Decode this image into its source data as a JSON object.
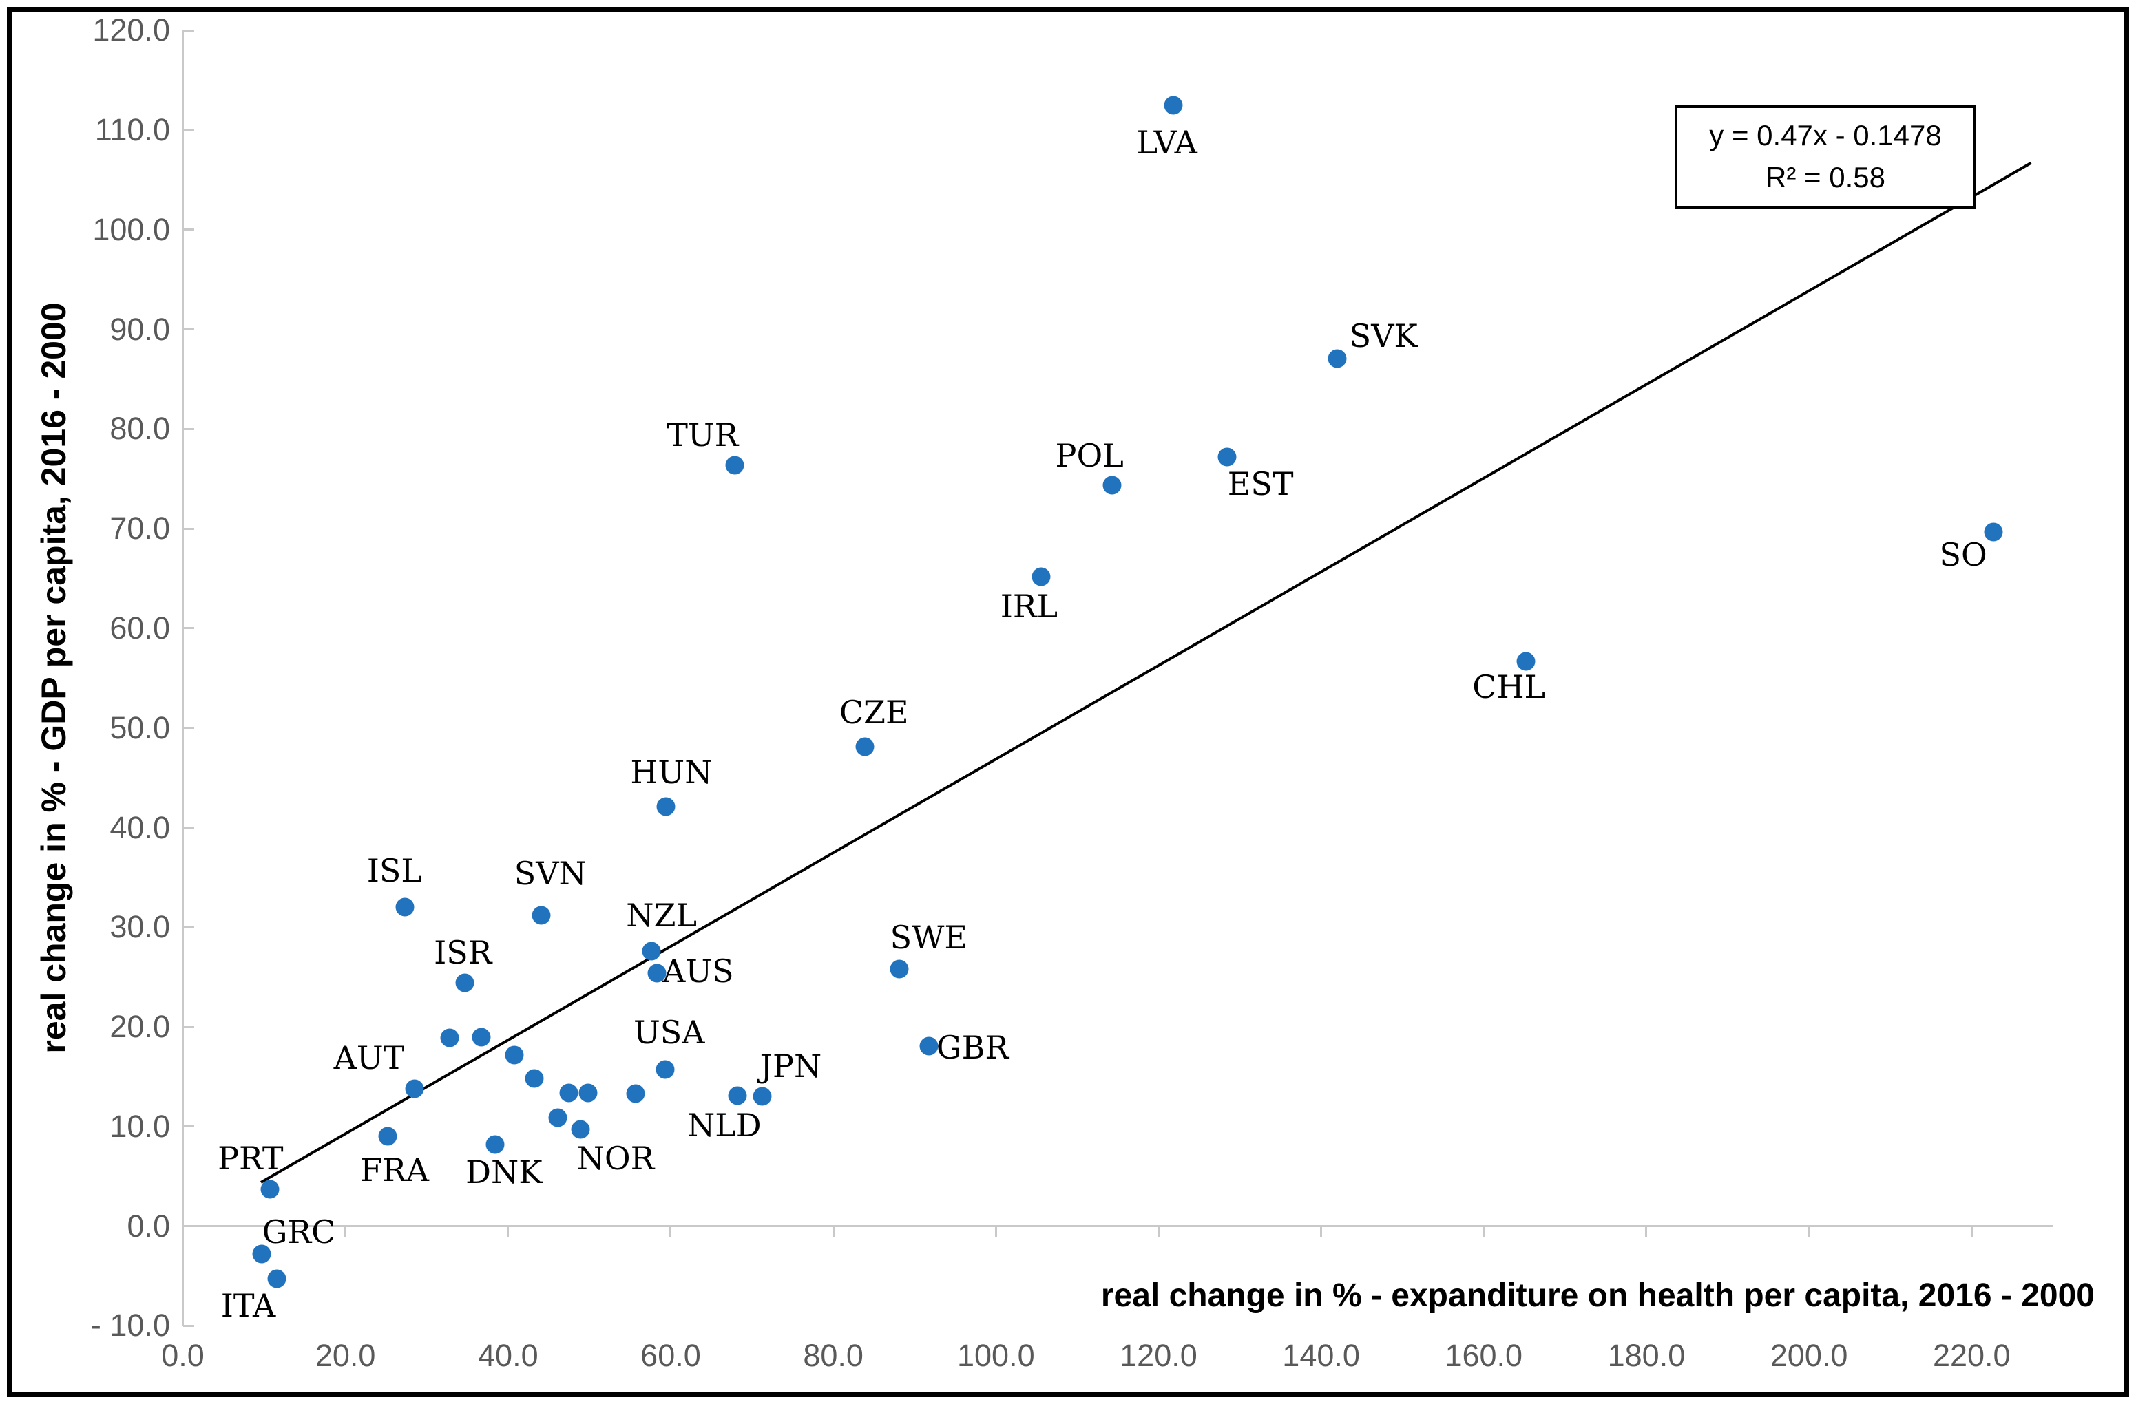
{
  "chart_data": {
    "type": "scatter",
    "title": "",
    "xlabel": "real change in %  - expanditure on health per capita, 2016 - 2000",
    "ylabel": "real change in % - GDP per capita, 2016 - 2000",
    "xlim": [
      0,
      230
    ],
    "ylim": [
      -10,
      120
    ],
    "grid": false,
    "legend_position": "none",
    "point_color": "#2173be",
    "axis_line_color": "#c9c9c9",
    "tick_label_color": "#595959",
    "x_ticks": [
      {
        "value": 0,
        "label": "0.0"
      },
      {
        "value": 20,
        "label": "20.0"
      },
      {
        "value": 40,
        "label": "40.0"
      },
      {
        "value": 60,
        "label": "60.0"
      },
      {
        "value": 80,
        "label": "80.0"
      },
      {
        "value": 100,
        "label": "100.0"
      },
      {
        "value": 120,
        "label": "120.0"
      },
      {
        "value": 140,
        "label": "140.0"
      },
      {
        "value": 160,
        "label": "160.0"
      },
      {
        "value": 180,
        "label": "180.0"
      },
      {
        "value": 200,
        "label": "200.0"
      },
      {
        "value": 220,
        "label": "220.0"
      }
    ],
    "y_ticks": [
      {
        "value": 120,
        "label": "120.0"
      },
      {
        "value": 110,
        "label": "110.0"
      },
      {
        "value": 100,
        "label": "100.0"
      },
      {
        "value": 90,
        "label": "90.0"
      },
      {
        "value": 80,
        "label": "80.0"
      },
      {
        "value": 70,
        "label": "70.0"
      },
      {
        "value": 60,
        "label": "60.0"
      },
      {
        "value": 50,
        "label": "50.0"
      },
      {
        "value": 40,
        "label": "40.0"
      },
      {
        "value": 30,
        "label": "30.0"
      },
      {
        "value": 20,
        "label": "20.0"
      },
      {
        "value": 10,
        "label": "10.0"
      },
      {
        "value": 0,
        "label": "0.0"
      },
      {
        "value": -10,
        "label": "- 10.0"
      }
    ],
    "trendline": {
      "equation": "y = 0.47x - 0.1478",
      "r2": "R² = 0.58",
      "slope": 0.47,
      "intercept": -0.1478,
      "x_start": 9.6,
      "x_end": 227.3
    },
    "points": [
      {
        "label": "LVA",
        "x": 121.8,
        "y": 112.5,
        "label_offset": [
          -9,
          54
        ]
      },
      {
        "label": "SVK",
        "x": 142.0,
        "y": 87.1,
        "label_offset": [
          67,
          -33
        ]
      },
      {
        "label": "EST",
        "x": 128.4,
        "y": 77.2,
        "label_offset": [
          49,
          39
        ]
      },
      {
        "label": "POL",
        "x": 114.3,
        "y": 74.4,
        "label_offset": [
          -33,
          -43
        ]
      },
      {
        "label": "TUR",
        "x": 67.9,
        "y": 76.4,
        "label_offset": [
          -47,
          -44
        ]
      },
      {
        "label": "SO",
        "x": 222.7,
        "y": 69.7,
        "label_offset": [
          -44,
          33
        ]
      },
      {
        "label": "IRL",
        "x": 105.6,
        "y": 65.2,
        "label_offset": [
          -18,
          43
        ]
      },
      {
        "label": "CHL",
        "x": 165.2,
        "y": 56.7,
        "label_offset": [
          -25,
          37
        ]
      },
      {
        "label": "CZE",
        "x": 83.9,
        "y": 48.1,
        "label_offset": [
          13,
          -50
        ]
      },
      {
        "label": "HUN",
        "x": 59.4,
        "y": 42.1,
        "label_offset": [
          8,
          -50
        ]
      },
      {
        "label": "ISL",
        "x": 27.3,
        "y": 32.0,
        "label_offset": [
          -15,
          -53
        ]
      },
      {
        "label": "SVN",
        "x": 44.1,
        "y": 31.2,
        "label_offset": [
          13,
          -61
        ]
      },
      {
        "label": "NZL",
        "x": 57.6,
        "y": 27.6,
        "label_offset": [
          15,
          -52
        ]
      },
      {
        "label": "SWE",
        "x": 88.1,
        "y": 25.8,
        "label_offset": [
          43,
          -46
        ]
      },
      {
        "label": "AUS",
        "x": 58.3,
        "y": 25.4,
        "label_offset": [
          60,
          -3
        ]
      },
      {
        "label": "ISR",
        "x": 34.7,
        "y": 24.4,
        "label_offset": [
          -3,
          -44
        ]
      },
      {
        "label": "",
        "x": 32.8,
        "y": 18.9
      },
      {
        "label": "",
        "x": 36.7,
        "y": 19.0
      },
      {
        "label": "GBR",
        "x": 91.8,
        "y": 18.1,
        "label_offset": [
          63,
          2
        ]
      },
      {
        "label": "",
        "x": 40.8,
        "y": 17.2
      },
      {
        "label": "USA",
        "x": 59.3,
        "y": 15.7,
        "label_offset": [
          6,
          -54
        ]
      },
      {
        "label": "",
        "x": 43.2,
        "y": 14.8
      },
      {
        "label": "AUT",
        "x": 28.5,
        "y": 13.8,
        "label_offset": [
          -66,
          -45
        ]
      },
      {
        "label": "",
        "x": 47.5,
        "y": 13.4
      },
      {
        "label": "",
        "x": 49.8,
        "y": 13.4
      },
      {
        "label": "",
        "x": 55.7,
        "y": 13.3
      },
      {
        "label": "NLD",
        "x": 68.2,
        "y": 13.1,
        "label_offset": [
          -19,
          43
        ]
      },
      {
        "label": "JPN",
        "x": 71.3,
        "y": 13.0,
        "label_offset": [
          41,
          -44
        ]
      },
      {
        "label": "",
        "x": 46.1,
        "y": 10.9
      },
      {
        "label": "NOR",
        "x": 48.9,
        "y": 9.7,
        "label_offset": [
          51,
          42
        ]
      },
      {
        "label": "FRA",
        "x": 25.2,
        "y": 9.0,
        "label_offset": [
          10,
          49
        ]
      },
      {
        "label": "DNK",
        "x": 38.4,
        "y": 8.2,
        "label_offset": [
          13,
          40
        ]
      },
      {
        "label": "PRT",
        "x": 10.7,
        "y": 3.7,
        "label_offset": [
          -28,
          -45
        ]
      },
      {
        "label": "GRC",
        "x": 9.7,
        "y": -2.8,
        "label_offset": [
          54,
          -32
        ]
      },
      {
        "label": "ITA",
        "x": 11.6,
        "y": -5.3,
        "label_offset": [
          -42,
          39
        ]
      }
    ]
  }
}
